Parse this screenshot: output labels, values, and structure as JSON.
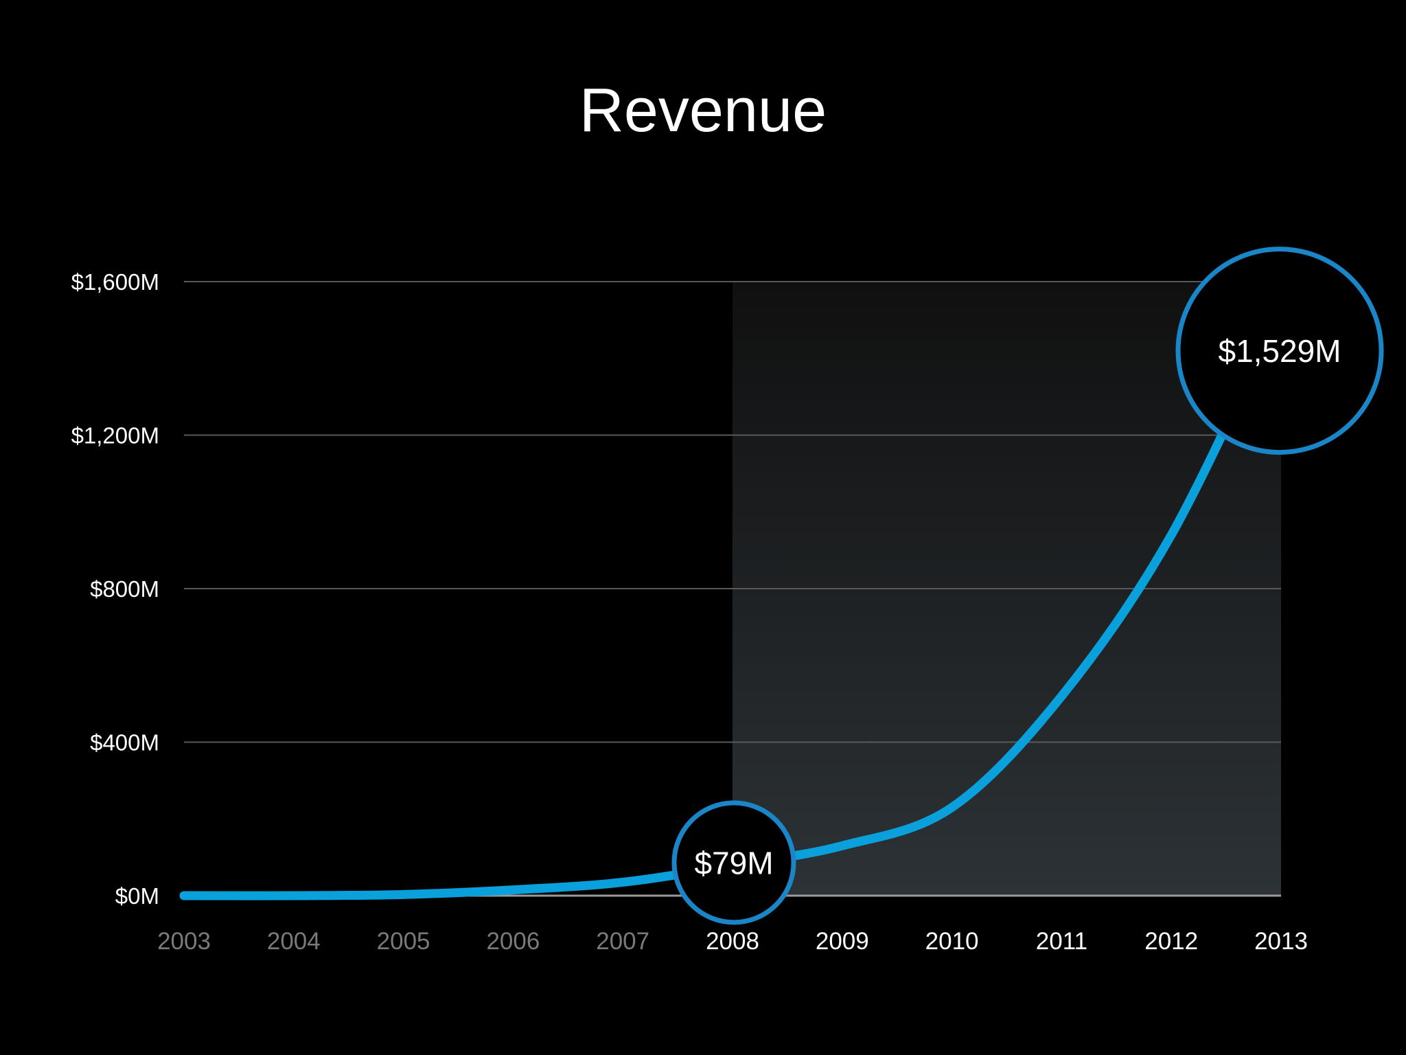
{
  "title": "Revenue",
  "colors": {
    "background": "#000000",
    "line": "#0aa0dc",
    "callout_border": "#1a86c8",
    "grid": "#5a5a5a",
    "highlight_top": "#101010",
    "highlight_bottom": "#2c3236",
    "muted_tick": "#7a7a7a",
    "text": "#ffffff"
  },
  "chart_data": {
    "type": "area",
    "title": "Revenue",
    "xlabel": "",
    "ylabel": "",
    "x": [
      2003,
      2004,
      2005,
      2006,
      2007,
      2008,
      2009,
      2010,
      2011,
      2012,
      2013
    ],
    "x_tick_labels": [
      "2003",
      "2004",
      "2005",
      "2006",
      "2007",
      "2008",
      "2009",
      "2010",
      "2011",
      "2012",
      "2013"
    ],
    "y_tick_values": [
      0,
      400,
      800,
      1200,
      1600
    ],
    "y_tick_labels": [
      "$0M",
      "$400M",
      "$800M",
      "$1,200M",
      "$1,600M"
    ],
    "ylim": [
      0,
      1600
    ],
    "xlim": [
      2003,
      2013
    ],
    "grid": true,
    "highlighted_range": [
      2008,
      2013
    ],
    "series": [
      {
        "values": [
          0,
          0,
          3,
          15,
          35,
          79,
          130,
          230,
          520,
          940,
          1529
        ]
      }
    ],
    "annotations": [
      {
        "x": 2008,
        "value": 79,
        "label": "$79M"
      },
      {
        "x": 2013,
        "value": 1529,
        "label": "$1,529M"
      }
    ]
  }
}
